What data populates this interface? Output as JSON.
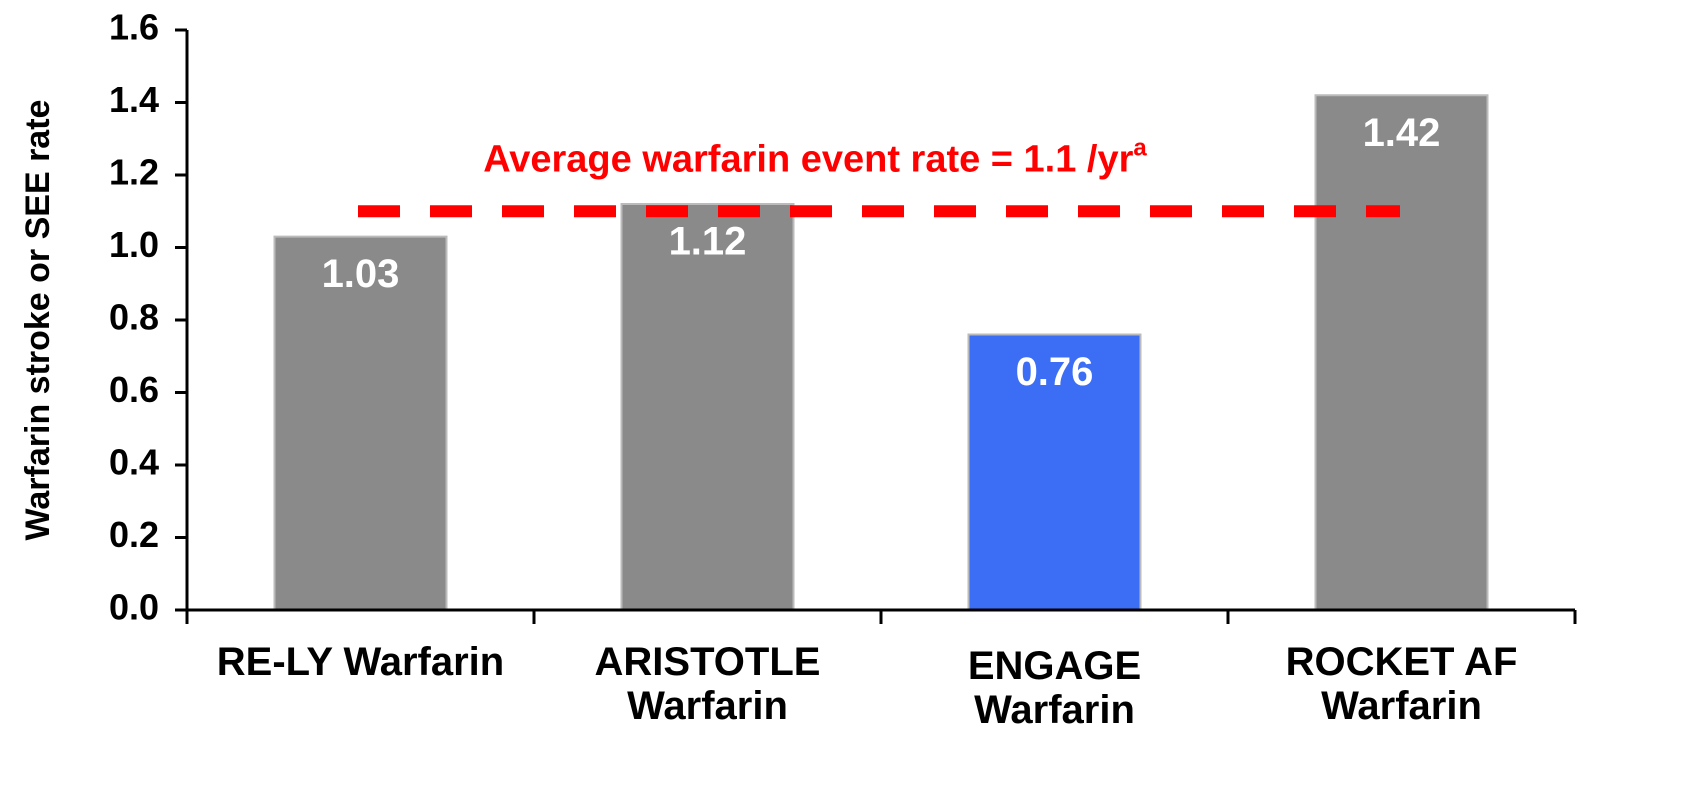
{
  "chart_data": {
    "type": "bar",
    "y_axis_label": "Warfarin stroke or SEE rate",
    "categories": [
      "RE-LY Warfarin",
      "ARISTOTLE Warfarin",
      "ENGAGE Warfarin",
      "ROCKET AF Warfarin"
    ],
    "values": [
      1.03,
      1.12,
      0.76,
      1.42
    ],
    "colors": [
      "#8a8a8a",
      "#8a8a8a",
      "#3b6ef5",
      "#8a8a8a"
    ],
    "ylim": [
      0,
      1.6
    ],
    "yticks": [
      {
        "value": 0,
        "label": "0.0"
      },
      0.2,
      0.4,
      0.6,
      0.8,
      {
        "value": 1,
        "label": "1.0"
      },
      1.2,
      1.4,
      1.6
    ],
    "reference_line": {
      "value": 1.1,
      "label": "Average warfarin event rate = 1.1 /yr",
      "label_superscript": "a",
      "color": "#ff0000"
    }
  }
}
